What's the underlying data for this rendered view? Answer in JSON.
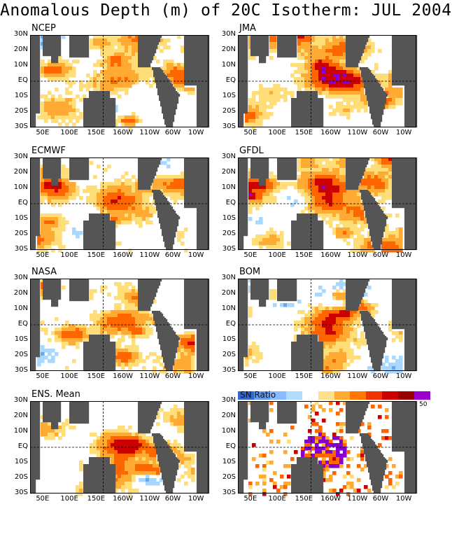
{
  "title": "Anomalous Depth (m) of 20C Isotherm: JUL 2004",
  "lat_labels": [
    "30N",
    "20N",
    "10N",
    "EQ",
    "10S",
    "20S",
    "30S"
  ],
  "lon_labels": [
    "50E",
    "100E",
    "150E",
    "160W",
    "110W",
    "60W",
    "10W"
  ],
  "panels": [
    {
      "name": "NCEP",
      "seed": 11,
      "warm_bias": 0.25,
      "purple": false
    },
    {
      "name": "JMA",
      "seed": 23,
      "warm_bias": 0.45,
      "purple": true
    },
    {
      "name": "ECMWF",
      "seed": 37,
      "warm_bias": 0.4,
      "purple": false
    },
    {
      "name": "GFDL",
      "seed": 41,
      "warm_bias": 0.45,
      "purple": true
    },
    {
      "name": "NASA",
      "seed": 53,
      "warm_bias": 0.35,
      "purple": false
    },
    {
      "name": "BOM",
      "seed": 67,
      "warm_bias": 0.35,
      "purple": true
    },
    {
      "name": "ENS. Mean",
      "seed": 79,
      "warm_bias": 0.35,
      "purple": false
    }
  ],
  "sn_panel": {
    "seed": 97
  },
  "colorbar": {
    "title": "SN  Ratio",
    "max_label": "50",
    "colors": [
      "#3366cc",
      "#6699ee",
      "#88bbff",
      "#b0ddff",
      "#ffffff",
      "#ffe08a",
      "#ffaa33",
      "#ff7700",
      "#ee3300",
      "#cc0000",
      "#990000",
      "#9900cc"
    ]
  },
  "palette": {
    "land": "#555555",
    "ocean_neutral": "#ffffff",
    "cool": [
      "#3377dd",
      "#66aaee",
      "#a8d8ff"
    ],
    "warm": [
      "#ffdd77",
      "#ffaa33",
      "#ff6600",
      "#cc0000"
    ],
    "purple": "#8800cc"
  }
}
